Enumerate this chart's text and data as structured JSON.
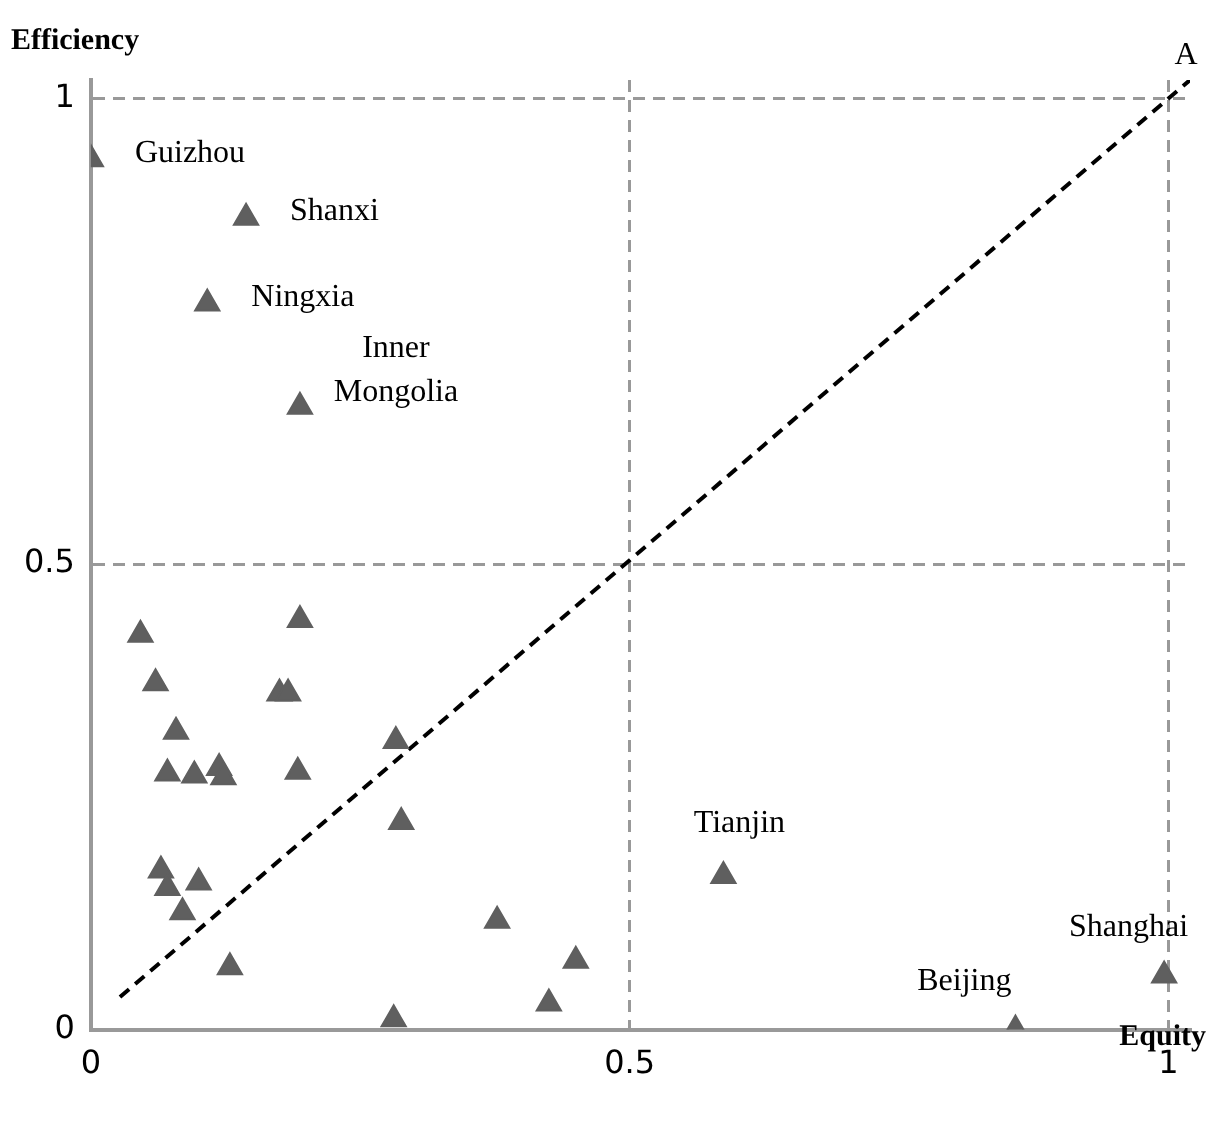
{
  "chart_data": {
    "type": "scatter",
    "xlabel": "Equity",
    "ylabel": "Efficiency",
    "xlim": [
      0,
      1.02
    ],
    "ylim": [
      0,
      1.02
    ],
    "xticks": [
      0,
      0.5,
      1
    ],
    "yticks": [
      0,
      0.5,
      1
    ],
    "grid": true,
    "legend": false,
    "series": [
      {
        "color": "#5f5f5f",
        "marker": "triangle",
        "x": [
          0,
          0.144,
          0.108,
          0.194,
          0.046,
          0.194,
          0.06,
          0.175,
          0.183,
          0.079,
          0.071,
          0.096,
          0.119,
          0.123,
          0.192,
          0.283,
          0.288,
          0.065,
          0.071,
          0.1,
          0.085,
          0.129,
          0.377,
          0.45,
          0.425,
          0.281,
          0.587,
          0.858,
          0.996
        ],
        "values": [
          0.935,
          0.872,
          0.78,
          0.669,
          0.424,
          0.44,
          0.372,
          0.361,
          0.361,
          0.32,
          0.275,
          0.273,
          0.281,
          0.271,
          0.277,
          0.31,
          0.223,
          0.171,
          0.152,
          0.158,
          0.126,
          0.067,
          0.117,
          0.074,
          0.028,
          0.011,
          0.165,
          0,
          0.058
        ]
      },
      {
        "type": "line",
        "color": "#000000",
        "marker": "none",
        "line_style": "dashed",
        "x": [
          0.027,
          1.02
        ],
        "values": [
          0.035,
          1.02
        ]
      }
    ],
    "annotations": [
      {
        "text": "Guizhou",
        "x": 0,
        "y": 0.935
      },
      {
        "text": "Shanxi",
        "x": 0.144,
        "y": 0.872
      },
      {
        "text": "Ningxia",
        "x": 0.108,
        "y": 0.78
      },
      {
        "text": "Inner Mongolia",
        "x": 0.194,
        "y": 0.669
      },
      {
        "text": "Tianjin",
        "x": 0.587,
        "y": 0.165
      },
      {
        "text": "Beijing",
        "x": 0.858,
        "y": 0
      },
      {
        "text": "Shanghai",
        "x": 0.996,
        "y": 0.058
      },
      {
        "text": "A",
        "x": 1.02,
        "y": 1.02
      }
    ]
  }
}
